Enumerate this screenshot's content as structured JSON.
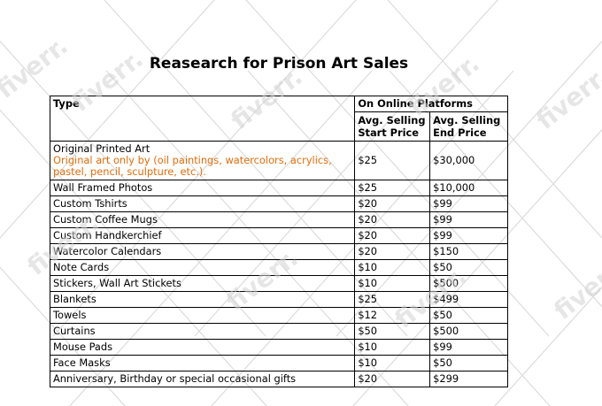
{
  "title": "Reasearch for Prison Art Sales",
  "watermark": "fiverr.",
  "table": {
    "type_header": "Type",
    "group_header": "On Online Platforms",
    "start_header": "Avg. Selling Start Price",
    "end_header": "Avg. Selling End Price",
    "rows": [
      {
        "type": "Original Printed Art",
        "note": "Original art only by (oil paintings, watercolors, acrylics, pastel, pencil, sculpture, etc.).",
        "start": "$25",
        "end": "$30,000"
      },
      {
        "type": "Wall Framed Photos",
        "start": "$25",
        "end": "$10,000"
      },
      {
        "type": "Custom Tshirts",
        "start": "$20",
        "end": "$99"
      },
      {
        "type": "Custom Coffee Mugs",
        "start": "$20",
        "end": "$99"
      },
      {
        "type": "Custom Handkerchief",
        "start": "$20",
        "end": "$99"
      },
      {
        "type": "Watercolor Calendars",
        "start": "$20",
        "end": "$150"
      },
      {
        "type": "Note Cards",
        "start": "$10",
        "end": "$50"
      },
      {
        "type": "Stickers, Wall Art Stickets",
        "start": "$10",
        "end": "$500"
      },
      {
        "type": "Blankets",
        "start": "$25",
        "end": "$499"
      },
      {
        "type": "Towels",
        "start": "$12",
        "end": "$50"
      },
      {
        "type": "Curtains",
        "start": "$50",
        "end": "$500"
      },
      {
        "type": "Mouse Pads",
        "start": "$10",
        "end": "$99"
      },
      {
        "type": "Face Masks",
        "start": "$10",
        "end": "$50"
      },
      {
        "type": "Anniversary, Birthday or special occasional gifts",
        "start": "$20",
        "end": "$299"
      }
    ]
  },
  "colors": {
    "note_text": "#e36c0a",
    "watermark": "#d2d2d2"
  }
}
